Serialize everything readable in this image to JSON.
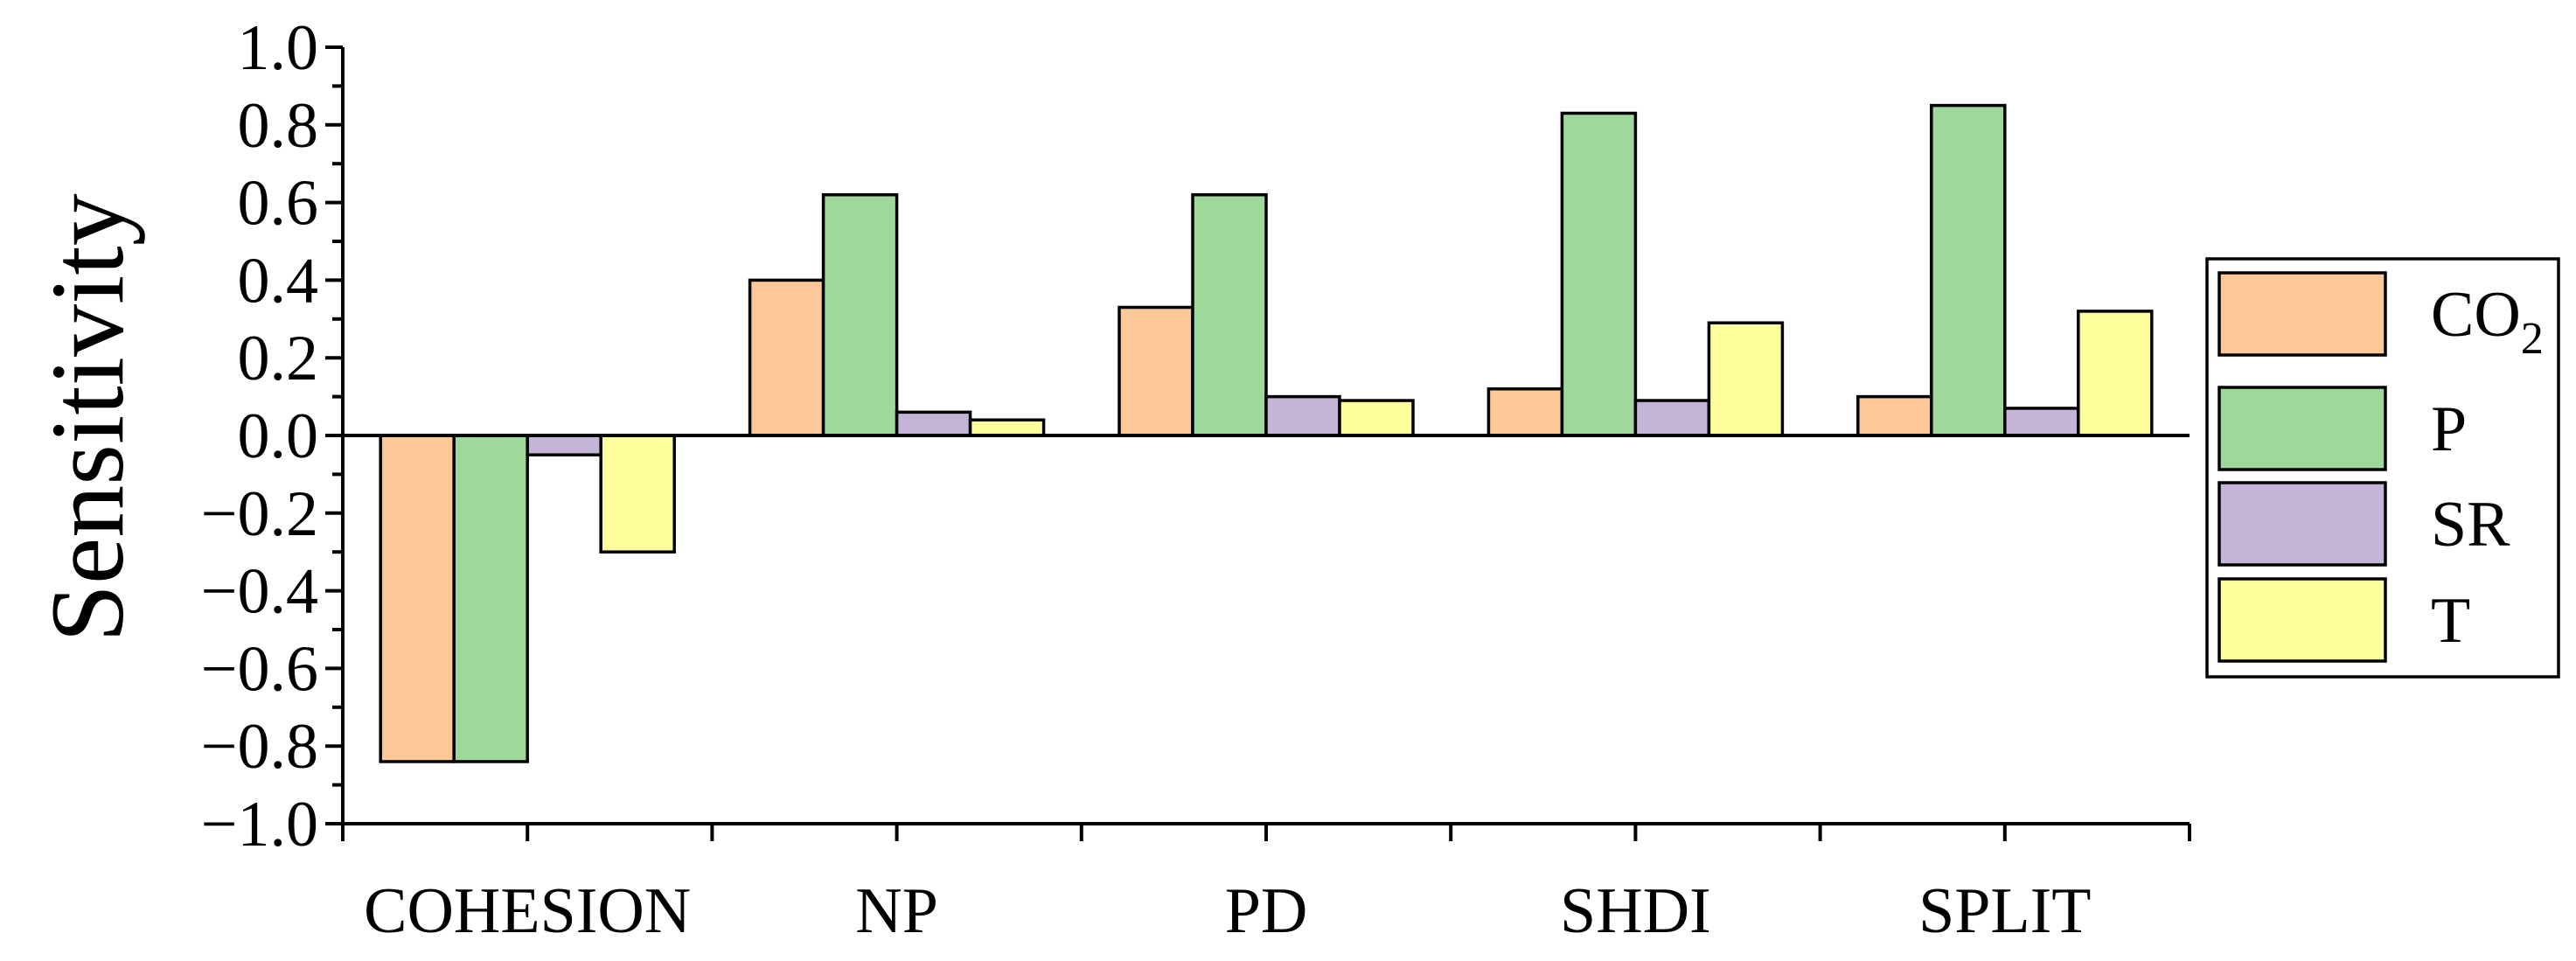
{
  "chart_data": {
    "type": "bar",
    "title": "",
    "xlabel": "",
    "ylabel": "Sensitivity",
    "ylim": [
      -1.0,
      1.0
    ],
    "yticks": [
      "−1.0",
      "−0.8",
      "−0.6",
      "−0.4",
      "−0.2",
      "0.0",
      "0.2",
      "0.4",
      "0.6",
      "0.8",
      "1.0"
    ],
    "categories": [
      "COHESION",
      "NP",
      "PD",
      "SHDI",
      "SPLIT"
    ],
    "series": [
      {
        "name": "CO2",
        "label_main": "CO",
        "label_sub": "2",
        "color": "#fdc897",
        "values": [
          -0.84,
          0.4,
          0.33,
          0.12,
          0.1
        ]
      },
      {
        "name": "P",
        "label_main": "P",
        "label_sub": "",
        "color": "#9fd89b",
        "values": [
          -0.84,
          0.62,
          0.62,
          0.83,
          0.85
        ]
      },
      {
        "name": "SR",
        "label_main": "SR",
        "label_sub": "",
        "color": "#c3b4d8",
        "values": [
          -0.05,
          0.06,
          0.1,
          0.09,
          0.07
        ]
      },
      {
        "name": "T",
        "label_main": "T",
        "label_sub": "",
        "color": "#fefe9d",
        "values": [
          -0.3,
          0.04,
          0.09,
          0.29,
          0.32
        ]
      }
    ],
    "grid": false,
    "legend_position": "right"
  }
}
